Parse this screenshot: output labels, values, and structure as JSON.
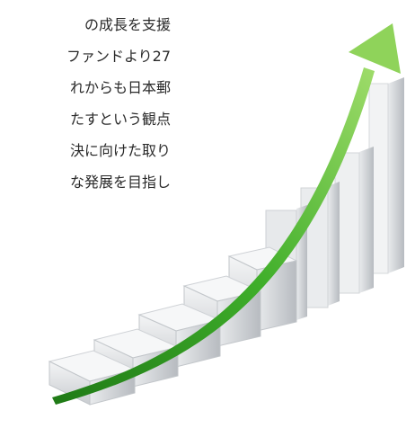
{
  "text_lines": [
    "の成長を支援",
    "ファンドより27",
    "れからも日本郵",
    "たすという観点",
    "決に向けた取り",
    "な発展を目指し"
  ]
}
